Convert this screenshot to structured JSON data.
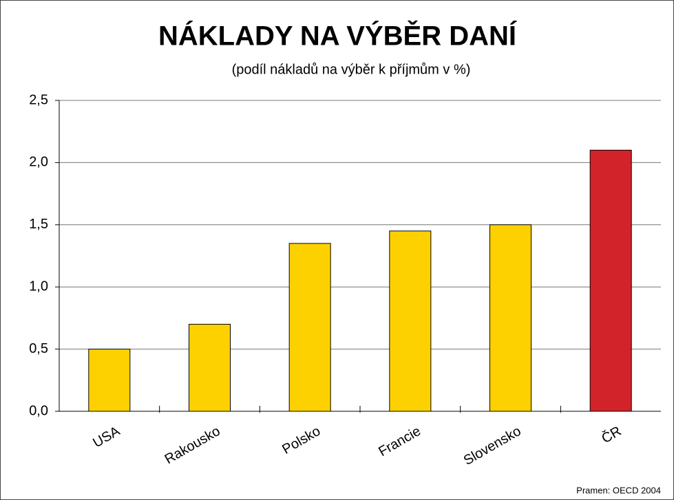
{
  "chart_data": {
    "type": "bar",
    "title": "NÁKLADY NA VÝBĚR DANÍ",
    "subtitle": "(podíl nákladů na výběr k příjmům v %)",
    "categories": [
      "USA",
      "Rakousko",
      "Polsko",
      "Francie",
      "Slovensko",
      "ČR"
    ],
    "values": [
      0.5,
      0.7,
      1.35,
      1.45,
      1.5,
      2.1
    ],
    "colors": [
      "#fdd100",
      "#fdd100",
      "#fdd100",
      "#fdd100",
      "#fdd100",
      "#d2232a"
    ],
    "ylim": [
      0,
      2.5
    ],
    "yticks": [
      {
        "value": 0,
        "label": "0,0"
      },
      {
        "value": 0.5,
        "label": "0,5"
      },
      {
        "value": 1,
        "label": "1,0"
      },
      {
        "value": 1.5,
        "label": "1,5"
      },
      {
        "value": 2,
        "label": "2,0"
      },
      {
        "value": 2.5,
        "label": "2,5"
      }
    ],
    "grid": true,
    "source": "Pramen: OECD 2004"
  }
}
